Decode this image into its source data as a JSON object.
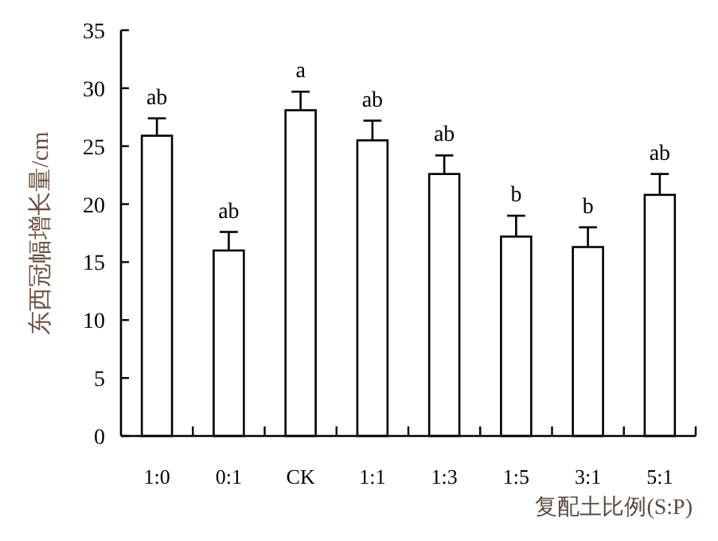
{
  "chart_data": {
    "type": "bar",
    "xlabel": "复配土比例(S:P)",
    "ylabel": "东西冠幅增长量/cm",
    "categories": [
      "1:0",
      "0:1",
      "CK",
      "1:1",
      "1:3",
      "1:5",
      "3:1",
      "5:1"
    ],
    "values": [
      25.9,
      16.0,
      28.1,
      25.5,
      22.6,
      17.2,
      16.3,
      20.8
    ],
    "errors": [
      [
        25.9,
        27.4
      ],
      [
        16.0,
        17.6
      ],
      [
        28.1,
        29.7
      ],
      [
        25.5,
        27.2
      ],
      [
        22.6,
        24.2
      ],
      [
        17.2,
        19.0
      ],
      [
        16.3,
        18.0
      ],
      [
        20.8,
        22.6
      ]
    ],
    "color": "#ffffff",
    "ylim": [
      0,
      35
    ],
    "yticks": [
      0,
      5,
      10,
      15,
      20,
      25,
      30,
      35
    ],
    "grid": false,
    "annotations": [
      {
        "text": "ab",
        "x": "1:0",
        "y": 27.4
      },
      {
        "text": "ab",
        "x": "0:1",
        "y": 17.6
      },
      {
        "text": "a",
        "x": "CK",
        "y": 29.7
      },
      {
        "text": "ab",
        "x": "1:1",
        "y": 27.2
      },
      {
        "text": "ab",
        "x": "1:3",
        "y": 24.2
      },
      {
        "text": "b",
        "x": "1:5",
        "y": 19.0
      },
      {
        "text": "b",
        "x": "3:1",
        "y": 18.0
      },
      {
        "text": "ab",
        "x": "5:1",
        "y": 22.6
      }
    ]
  }
}
